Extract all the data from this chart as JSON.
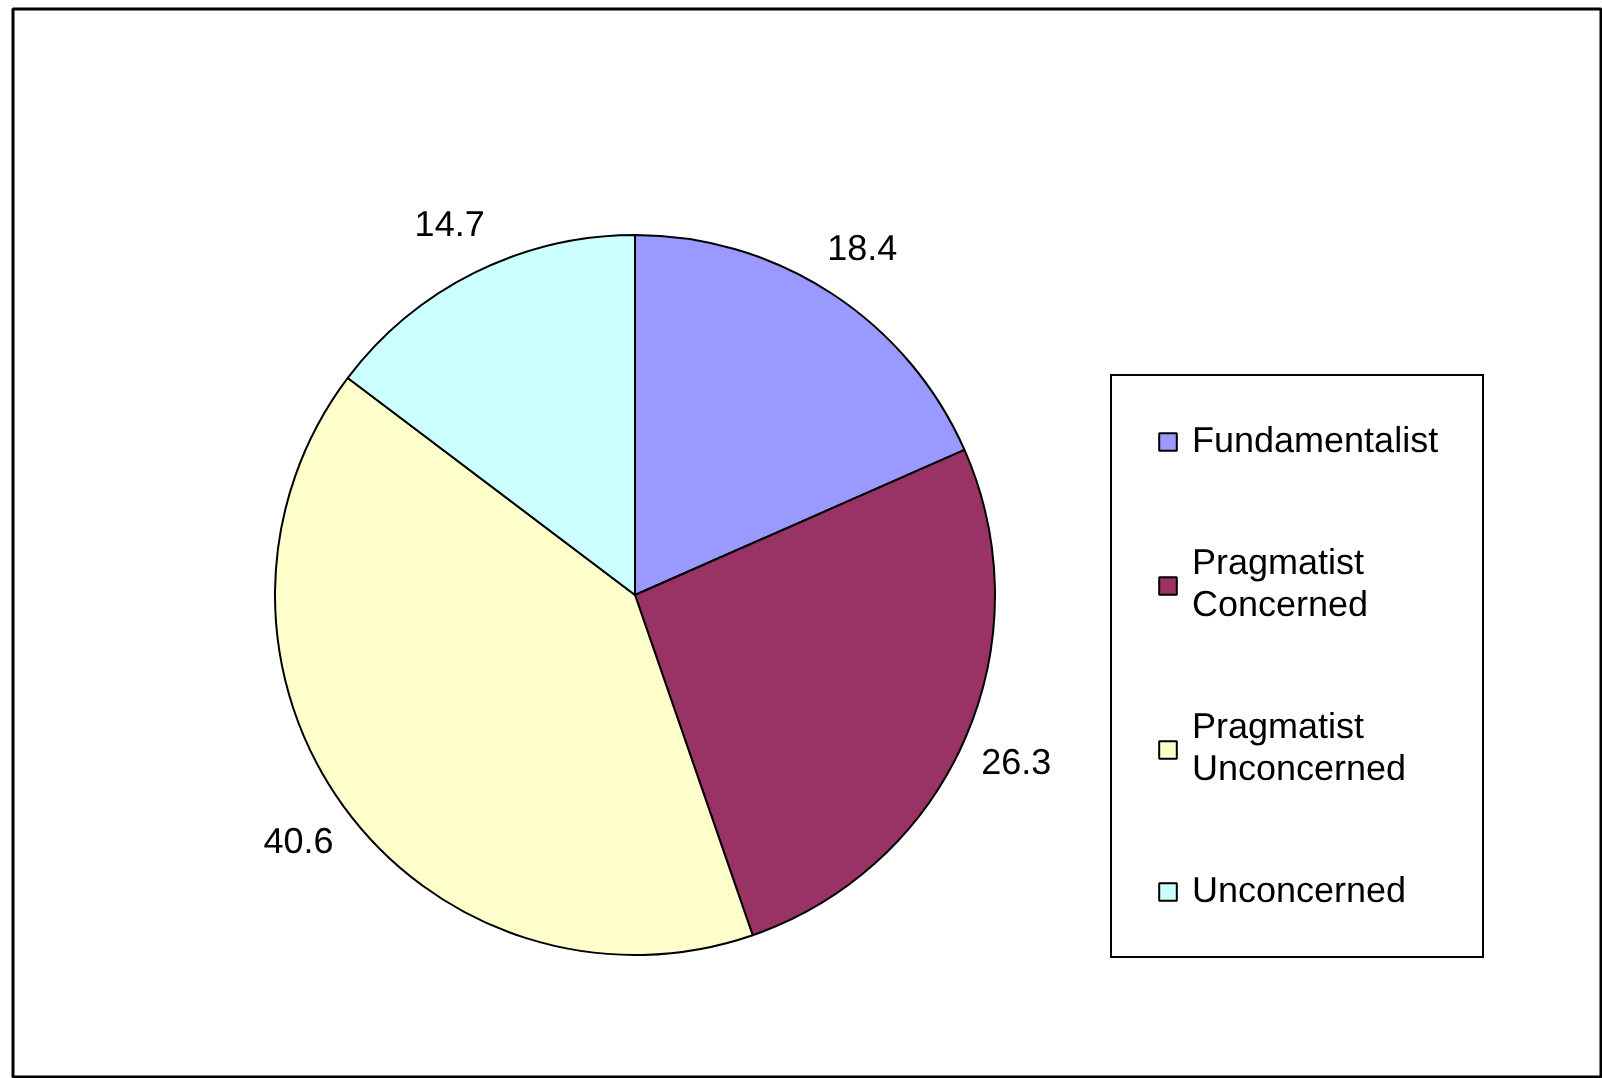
{
  "chart_data": {
    "type": "pie",
    "categories": [
      "Fundamentalist",
      "Pragmatist Concerned",
      "Pragmatist Unconcerned",
      "Unconcerned"
    ],
    "values": [
      18.4,
      26.3,
      40.6,
      14.7
    ],
    "colors": [
      "#9999ff",
      "#993366",
      "#ffffcc",
      "#ccffff"
    ],
    "data_labels": true,
    "legend": "right"
  }
}
